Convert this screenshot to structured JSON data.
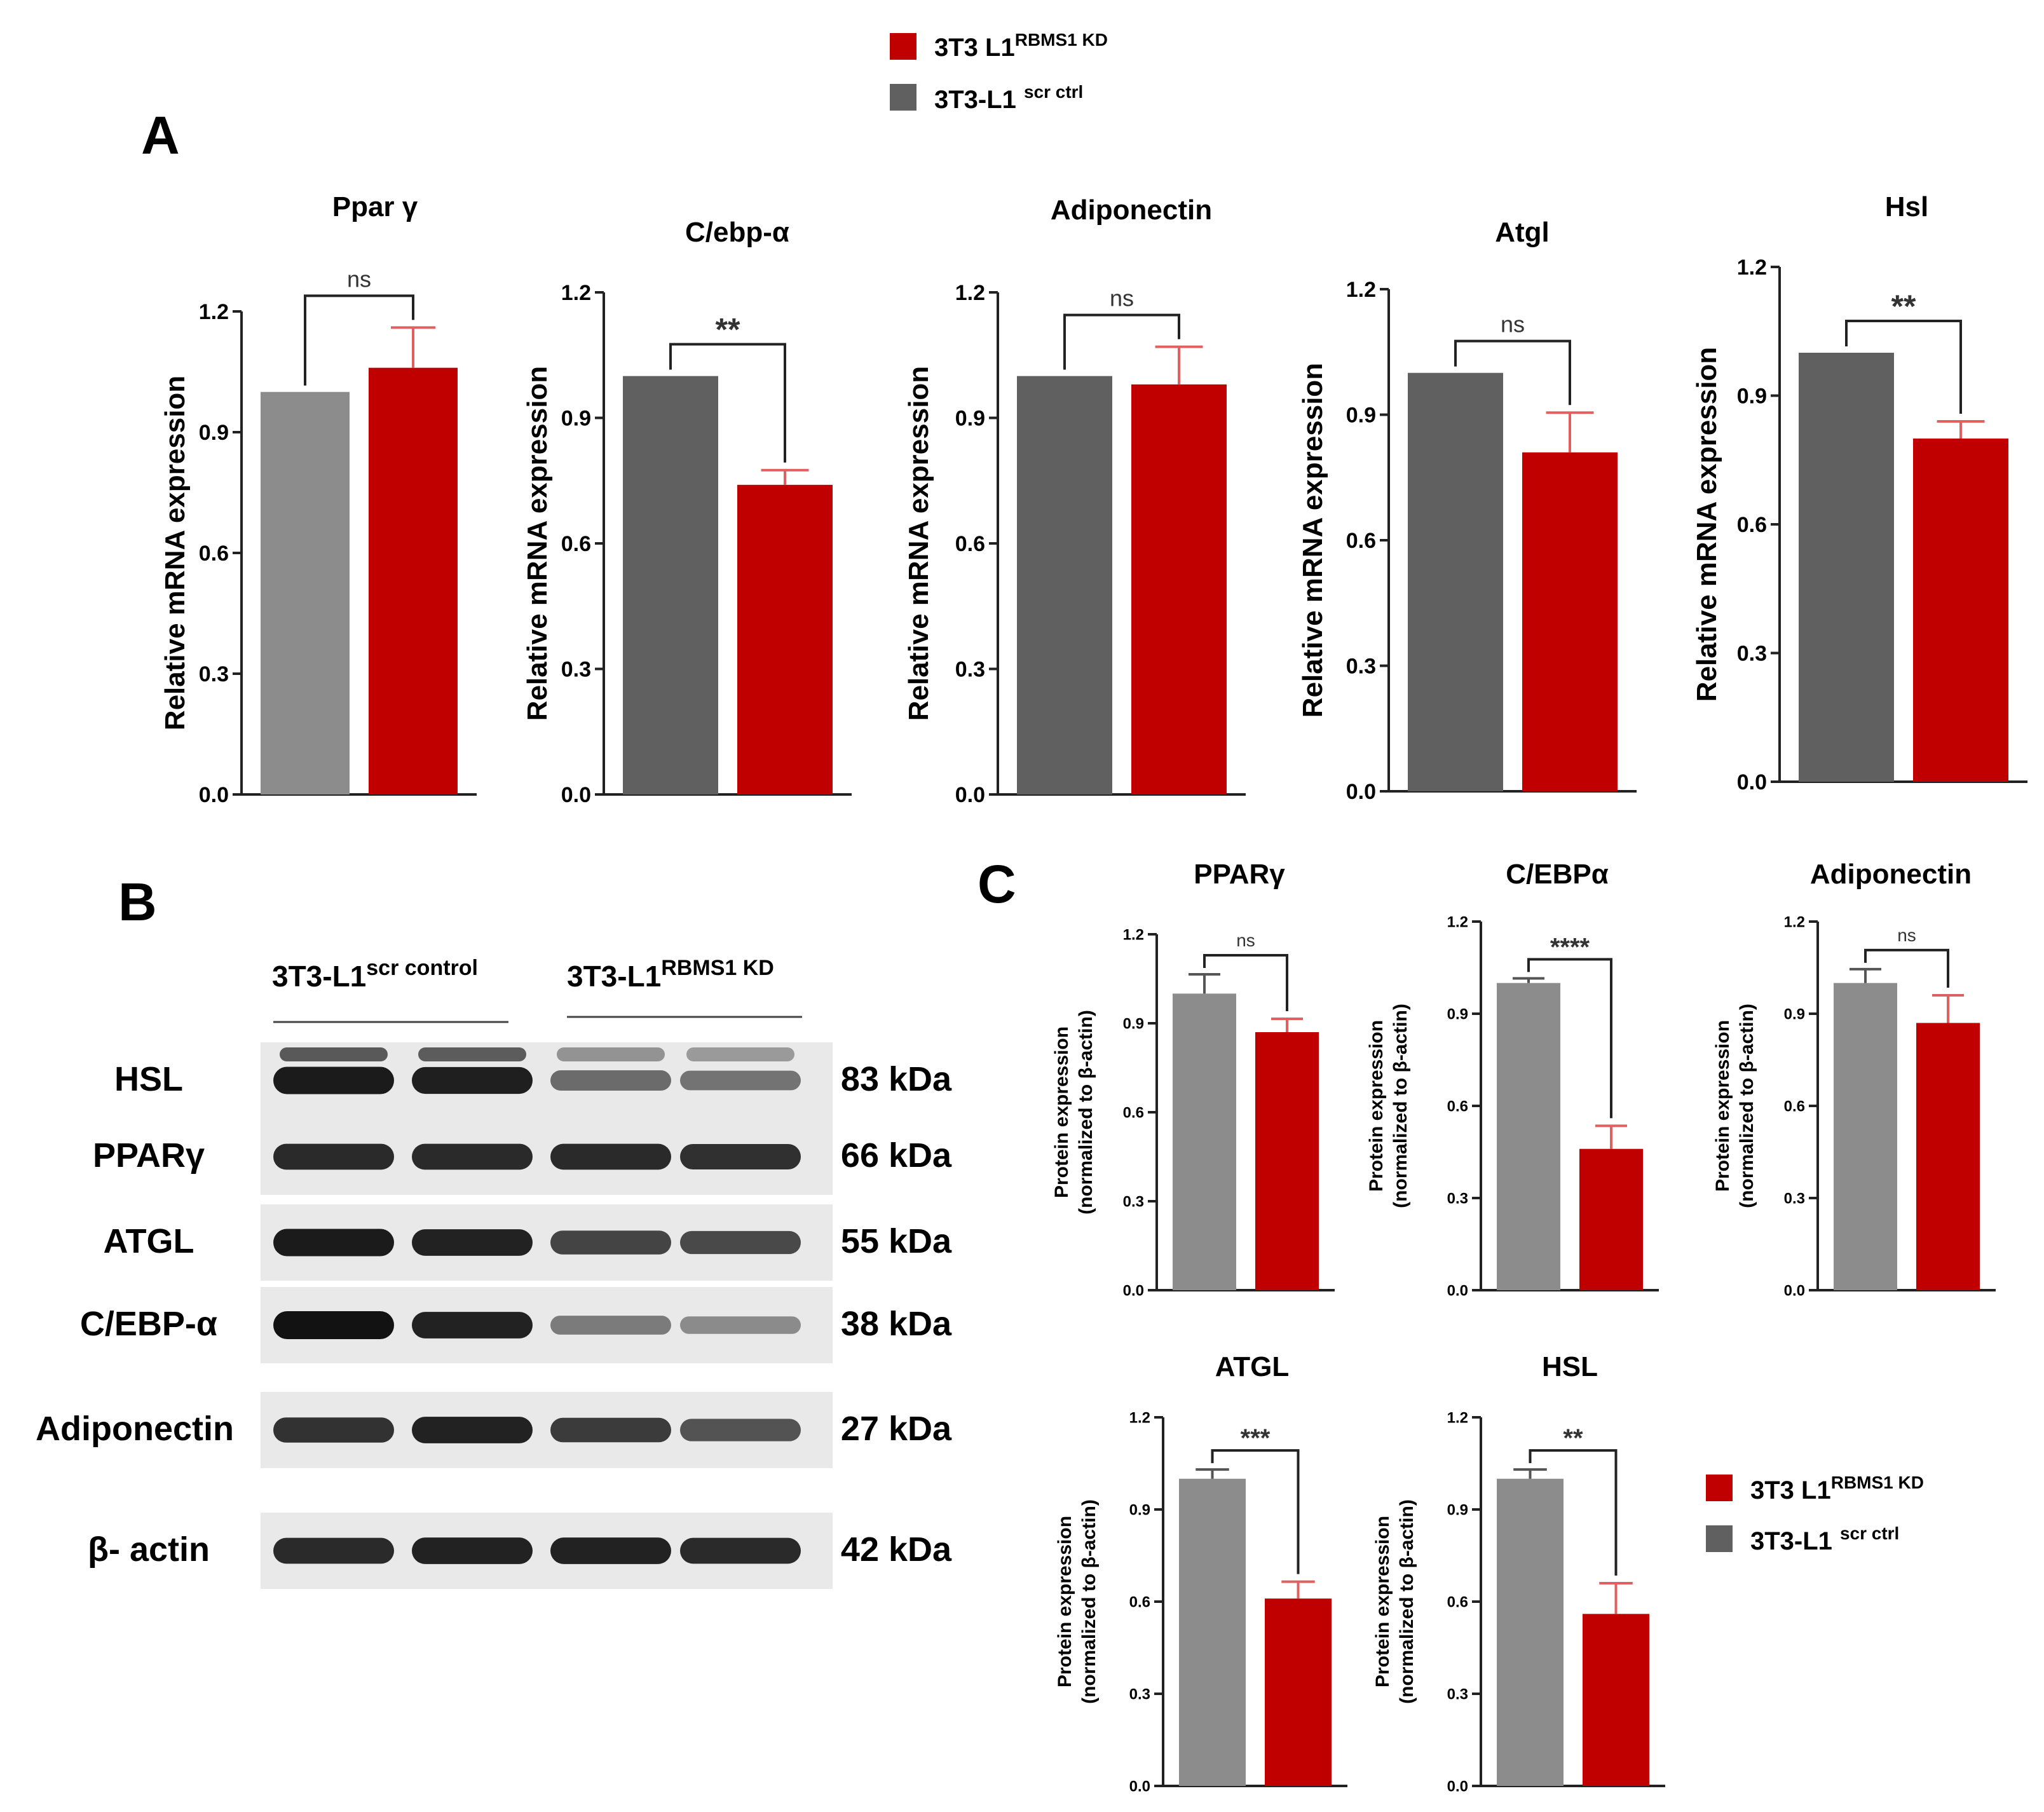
{
  "colors": {
    "kd": "#c00000",
    "kd_err": "#e06060",
    "ctrl_dark": "#606060",
    "ctrl_light": "#8c8c8c",
    "axis": "#222222",
    "blot_bg": "#e9e9e9",
    "band": "#121212"
  },
  "top_legend": {
    "kd_label": "3T3 L1",
    "kd_sup": "RBMS1 KD",
    "ctrl_label": "3T3-L1",
    "ctrl_sup": "scr ctrl"
  },
  "bottom_legend": {
    "kd_label": "3T3 L1",
    "kd_sup": "RBMS1 KD",
    "ctrl_label": "3T3-L1",
    "ctrl_sup": "scr ctrl"
  },
  "panel_labels": {
    "a": "A",
    "b": "B",
    "c": "C"
  },
  "blot": {
    "group_ctrl": "3T3-L1",
    "group_ctrl_sup": "scr  control",
    "group_kd": "3T3-L1",
    "group_kd_sup": "RBMS1 KD",
    "rows": [
      {
        "protein": "HSL",
        "kda": "83 kDa",
        "intensity": [
          0.95,
          0.92,
          0.45,
          0.4
        ]
      },
      {
        "protein": "PPARγ",
        "kda": "66 kDa",
        "intensity": [
          0.85,
          0.85,
          0.85,
          0.82
        ]
      },
      {
        "protein": "ATGL",
        "kda": "55 kDa",
        "intensity": [
          0.95,
          0.9,
          0.7,
          0.65
        ]
      },
      {
        "protein": "C/EBP-α",
        "kda": "38 kDa",
        "intensity": [
          1.0,
          0.9,
          0.35,
          0.25
        ]
      },
      {
        "protein": "Adiponectin",
        "kda": "27 kDa",
        "intensity": [
          0.8,
          0.9,
          0.75,
          0.6
        ]
      },
      {
        "protein": "β- actin",
        "kda": "42 kDa",
        "intensity": [
          0.85,
          0.9,
          0.9,
          0.85
        ]
      }
    ]
  },
  "chart_data": [
    {
      "panel": "A",
      "type": "bar",
      "title": "Ppar γ",
      "ylabel": "Relative mRNA expression",
      "ylim": [
        0,
        1.2
      ],
      "yticks": [
        "0.0",
        "0.3",
        "0.6",
        "0.9",
        "1.2"
      ],
      "categories": [
        "3T3-L1 scr ctrl",
        "3T3 L1 RBMS1 KD"
      ],
      "values": [
        1.0,
        1.06
      ],
      "errors": [
        0,
        0.1
      ],
      "significance": "ns"
    },
    {
      "panel": "A",
      "type": "bar",
      "title": "C/ebp-α",
      "ylabel": "Relative mRNA expression",
      "ylim": [
        0,
        1.2
      ],
      "yticks": [
        "0.0",
        "0.3",
        "0.6",
        "0.9",
        "1.2"
      ],
      "categories": [
        "3T3-L1 scr ctrl",
        "3T3 L1 RBMS1 KD"
      ],
      "values": [
        1.0,
        0.74
      ],
      "errors": [
        0,
        0.035
      ],
      "significance": "**"
    },
    {
      "panel": "A",
      "type": "bar",
      "title": "Adiponectin",
      "ylabel": "Relative mRNA expression",
      "ylim": [
        0,
        1.2
      ],
      "yticks": [
        "0.0",
        "0.3",
        "0.6",
        "0.9",
        "1.2"
      ],
      "categories": [
        "3T3-L1 scr ctrl",
        "3T3 L1 RBMS1 KD"
      ],
      "values": [
        1.0,
        0.98
      ],
      "errors": [
        0,
        0.09
      ],
      "significance": "ns"
    },
    {
      "panel": "A",
      "type": "bar",
      "title": "Atgl",
      "ylabel": "Relative mRNA expression",
      "ylim": [
        0,
        1.2
      ],
      "yticks": [
        "0.0",
        "0.3",
        "0.6",
        "0.9",
        "1.2"
      ],
      "categories": [
        "3T3-L1 scr ctrl",
        "3T3 L1 RBMS1 KD"
      ],
      "values": [
        1.0,
        0.81
      ],
      "errors": [
        0,
        0.095
      ],
      "significance": "ns"
    },
    {
      "panel": "A",
      "type": "bar",
      "title": "Hsl",
      "ylabel": "Relative mRNA expression",
      "ylim": [
        0,
        1.2
      ],
      "yticks": [
        "0.0",
        "0.3",
        "0.6",
        "0.9",
        "1.2"
      ],
      "categories": [
        "3T3-L1 scr ctrl",
        "3T3 L1 RBMS1 KD"
      ],
      "values": [
        1.0,
        0.8
      ],
      "errors": [
        0,
        0.04
      ],
      "significance": "**"
    },
    {
      "panel": "C",
      "type": "bar",
      "title": "PPARγ",
      "ylabel": "Protein expression",
      "ylabel2": "(normalized to β-actin)",
      "ylim": [
        0,
        1.2
      ],
      "yticks": [
        "0.0",
        "0.3",
        "0.6",
        "0.9",
        "1.2"
      ],
      "categories": [
        "3T3-L1 scr ctrl",
        "3T3 L1 RBMS1 KD"
      ],
      "values": [
        1.0,
        0.87
      ],
      "errors": [
        0.065,
        0.045
      ],
      "significance": "ns"
    },
    {
      "panel": "C",
      "type": "bar",
      "title": "C/EBPα",
      "ylabel": "Protein expression",
      "ylabel2": "(normalized to β-actin)",
      "ylim": [
        0,
        1.2
      ],
      "yticks": [
        "0.0",
        "0.3",
        "0.6",
        "0.9",
        "1.2"
      ],
      "categories": [
        "3T3-L1 scr ctrl",
        "3T3 L1 RBMS1 KD"
      ],
      "values": [
        1.0,
        0.46
      ],
      "errors": [
        0.015,
        0.075
      ],
      "significance": "****"
    },
    {
      "panel": "C",
      "type": "bar",
      "title": "Adiponectin",
      "ylabel": "Protein expression",
      "ylabel2": "(normalized to β-actin)",
      "ylim": [
        0,
        1.2
      ],
      "yticks": [
        "0.0",
        "0.3",
        "0.6",
        "0.9",
        "1.2"
      ],
      "categories": [
        "3T3-L1 scr ctrl",
        "3T3 L1 RBMS1 KD"
      ],
      "values": [
        1.0,
        0.87
      ],
      "errors": [
        0.045,
        0.09
      ],
      "significance": "ns"
    },
    {
      "panel": "C",
      "type": "bar",
      "title": "ATGL",
      "ylabel": "Protein expression",
      "ylabel2": "(normalized to β-actin)",
      "ylim": [
        0,
        1.2
      ],
      "yticks": [
        "0.0",
        "0.3",
        "0.6",
        "0.9",
        "1.2"
      ],
      "categories": [
        "3T3-L1 scr ctrl",
        "3T3 L1 RBMS1 KD"
      ],
      "values": [
        1.0,
        0.61
      ],
      "errors": [
        0.03,
        0.055
      ],
      "significance": "***"
    },
    {
      "panel": "C",
      "type": "bar",
      "title": "HSL",
      "ylabel": "Protein expression",
      "ylabel2": "(normalized to β-actin)",
      "ylim": [
        0,
        1.2
      ],
      "yticks": [
        "0.0",
        "0.3",
        "0.6",
        "0.9",
        "1.2"
      ],
      "categories": [
        "3T3-L1 scr ctrl",
        "3T3 L1 RBMS1 KD"
      ],
      "values": [
        1.0,
        0.56
      ],
      "errors": [
        0.03,
        0.1
      ],
      "significance": "**"
    }
  ]
}
